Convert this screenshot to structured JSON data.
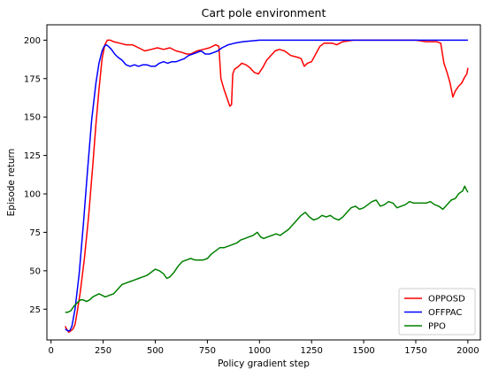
{
  "chart_data": {
    "type": "line",
    "title": "Cart pole environment",
    "xlabel": "Policy gradient step",
    "ylabel": "Episode return",
    "xlim": [
      -20,
      2060
    ],
    "ylim": [
      5,
      210
    ],
    "xticks": [
      0,
      250,
      500,
      750,
      1000,
      1250,
      1500,
      1750,
      2000
    ],
    "yticks": [
      25,
      50,
      75,
      100,
      125,
      150,
      175,
      200
    ],
    "grid": false,
    "legend_position": "bottom-right",
    "series": [
      {
        "name": "OPPOSD",
        "color": "#ff0000",
        "points": [
          [
            68,
            14
          ],
          [
            75,
            12
          ],
          [
            85,
            10
          ],
          [
            95,
            11
          ],
          [
            105,
            12
          ],
          [
            115,
            15
          ],
          [
            125,
            23
          ],
          [
            140,
            36
          ],
          [
            160,
            58
          ],
          [
            180,
            85
          ],
          [
            200,
            118
          ],
          [
            215,
            145
          ],
          [
            230,
            168
          ],
          [
            245,
            188
          ],
          [
            258,
            197
          ],
          [
            270,
            200
          ],
          [
            285,
            200
          ],
          [
            300,
            199
          ],
          [
            330,
            198
          ],
          [
            360,
            197
          ],
          [
            390,
            197
          ],
          [
            420,
            195
          ],
          [
            450,
            193
          ],
          [
            480,
            194
          ],
          [
            510,
            195
          ],
          [
            540,
            194
          ],
          [
            570,
            195
          ],
          [
            600,
            193
          ],
          [
            630,
            192
          ],
          [
            650,
            191
          ],
          [
            670,
            191
          ],
          [
            700,
            193
          ],
          [
            730,
            194
          ],
          [
            760,
            195
          ],
          [
            790,
            197
          ],
          [
            805,
            196
          ],
          [
            815,
            175
          ],
          [
            830,
            168
          ],
          [
            845,
            162
          ],
          [
            858,
            157
          ],
          [
            866,
            158
          ],
          [
            872,
            178
          ],
          [
            880,
            181
          ],
          [
            900,
            183
          ],
          [
            915,
            185
          ],
          [
            935,
            184
          ],
          [
            955,
            182
          ],
          [
            975,
            179
          ],
          [
            995,
            178
          ],
          [
            1015,
            182
          ],
          [
            1035,
            187
          ],
          [
            1055,
            190
          ],
          [
            1075,
            193
          ],
          [
            1095,
            194
          ],
          [
            1120,
            193
          ],
          [
            1150,
            190
          ],
          [
            1180,
            189
          ],
          [
            1200,
            188
          ],
          [
            1215,
            183
          ],
          [
            1230,
            185
          ],
          [
            1250,
            186
          ],
          [
            1270,
            191
          ],
          [
            1290,
            196
          ],
          [
            1310,
            198
          ],
          [
            1350,
            198
          ],
          [
            1370,
            197
          ],
          [
            1400,
            199
          ],
          [
            1450,
            200
          ],
          [
            1500,
            200
          ],
          [
            1550,
            200
          ],
          [
            1600,
            200
          ],
          [
            1650,
            200
          ],
          [
            1700,
            200
          ],
          [
            1750,
            200
          ],
          [
            1800,
            199
          ],
          [
            1850,
            199
          ],
          [
            1870,
            198
          ],
          [
            1885,
            185
          ],
          [
            1900,
            179
          ],
          [
            1915,
            172
          ],
          [
            1928,
            163
          ],
          [
            1940,
            167
          ],
          [
            1955,
            170
          ],
          [
            1970,
            172
          ],
          [
            1985,
            176
          ],
          [
            1995,
            178
          ],
          [
            2000,
            182
          ]
        ]
      },
      {
        "name": "OFFPAC",
        "color": "#0000ff",
        "points": [
          [
            68,
            12
          ],
          [
            80,
            11
          ],
          [
            90,
            11
          ],
          [
            100,
            14
          ],
          [
            115,
            25
          ],
          [
            135,
            48
          ],
          [
            155,
            80
          ],
          [
            175,
            115
          ],
          [
            195,
            148
          ],
          [
            215,
            172
          ],
          [
            230,
            185
          ],
          [
            245,
            193
          ],
          [
            255,
            196
          ],
          [
            265,
            197
          ],
          [
            275,
            196
          ],
          [
            290,
            194
          ],
          [
            305,
            191
          ],
          [
            320,
            189
          ],
          [
            340,
            187
          ],
          [
            360,
            184
          ],
          [
            380,
            183
          ],
          [
            400,
            184
          ],
          [
            420,
            183
          ],
          [
            440,
            184
          ],
          [
            460,
            184
          ],
          [
            480,
            183
          ],
          [
            500,
            183
          ],
          [
            520,
            185
          ],
          [
            540,
            186
          ],
          [
            560,
            185
          ],
          [
            580,
            186
          ],
          [
            600,
            186
          ],
          [
            620,
            187
          ],
          [
            640,
            188
          ],
          [
            660,
            190
          ],
          [
            680,
            191
          ],
          [
            700,
            192
          ],
          [
            720,
            193
          ],
          [
            740,
            191
          ],
          [
            760,
            191
          ],
          [
            780,
            192
          ],
          [
            800,
            193
          ],
          [
            820,
            195
          ],
          [
            850,
            197
          ],
          [
            880,
            198
          ],
          [
            920,
            199
          ],
          [
            960,
            199.5
          ],
          [
            1000,
            200
          ],
          [
            1100,
            200
          ],
          [
            1200,
            200
          ],
          [
            1300,
            200
          ],
          [
            1400,
            200
          ],
          [
            1500,
            200
          ],
          [
            1600,
            200
          ],
          [
            1700,
            200
          ],
          [
            1800,
            200
          ],
          [
            1900,
            200
          ],
          [
            2000,
            200
          ]
        ]
      },
      {
        "name": "PPO",
        "color": "#008000",
        "points": [
          [
            68,
            23
          ],
          [
            80,
            23
          ],
          [
            95,
            24
          ],
          [
            110,
            27
          ],
          [
            125,
            29
          ],
          [
            140,
            31
          ],
          [
            155,
            31
          ],
          [
            170,
            30
          ],
          [
            185,
            31
          ],
          [
            200,
            33
          ],
          [
            215,
            34
          ],
          [
            230,
            35
          ],
          [
            245,
            34
          ],
          [
            260,
            33
          ],
          [
            280,
            34
          ],
          [
            300,
            35
          ],
          [
            320,
            38
          ],
          [
            340,
            41
          ],
          [
            360,
            42
          ],
          [
            380,
            43
          ],
          [
            400,
            44
          ],
          [
            420,
            45
          ],
          [
            440,
            46
          ],
          [
            460,
            47
          ],
          [
            480,
            49
          ],
          [
            500,
            51
          ],
          [
            520,
            50
          ],
          [
            540,
            48
          ],
          [
            555,
            45
          ],
          [
            570,
            46
          ],
          [
            590,
            49
          ],
          [
            610,
            53
          ],
          [
            630,
            56
          ],
          [
            650,
            57
          ],
          [
            670,
            58
          ],
          [
            690,
            57
          ],
          [
            710,
            57
          ],
          [
            730,
            57
          ],
          [
            750,
            58
          ],
          [
            770,
            61
          ],
          [
            790,
            63
          ],
          [
            810,
            65
          ],
          [
            830,
            65
          ],
          [
            850,
            66
          ],
          [
            870,
            67
          ],
          [
            890,
            68
          ],
          [
            910,
            70
          ],
          [
            930,
            71
          ],
          [
            950,
            72
          ],
          [
            970,
            73
          ],
          [
            990,
            75
          ],
          [
            1005,
            72
          ],
          [
            1020,
            71
          ],
          [
            1040,
            72
          ],
          [
            1060,
            73
          ],
          [
            1080,
            74
          ],
          [
            1100,
            73
          ],
          [
            1120,
            75
          ],
          [
            1140,
            77
          ],
          [
            1160,
            80
          ],
          [
            1180,
            83
          ],
          [
            1200,
            86
          ],
          [
            1220,
            88
          ],
          [
            1240,
            85
          ],
          [
            1260,
            83
          ],
          [
            1280,
            84
          ],
          [
            1300,
            86
          ],
          [
            1320,
            85
          ],
          [
            1340,
            86
          ],
          [
            1360,
            84
          ],
          [
            1380,
            83
          ],
          [
            1400,
            85
          ],
          [
            1420,
            88
          ],
          [
            1440,
            91
          ],
          [
            1460,
            92
          ],
          [
            1480,
            90
          ],
          [
            1500,
            91
          ],
          [
            1520,
            93
          ],
          [
            1540,
            95
          ],
          [
            1560,
            96
          ],
          [
            1580,
            92
          ],
          [
            1600,
            93
          ],
          [
            1620,
            95
          ],
          [
            1640,
            94
          ],
          [
            1660,
            91
          ],
          [
            1680,
            92
          ],
          [
            1700,
            93
          ],
          [
            1720,
            95
          ],
          [
            1740,
            94
          ],
          [
            1760,
            94
          ],
          [
            1780,
            94
          ],
          [
            1800,
            94
          ],
          [
            1820,
            95
          ],
          [
            1840,
            93
          ],
          [
            1860,
            92
          ],
          [
            1880,
            90
          ],
          [
            1900,
            93
          ],
          [
            1920,
            96
          ],
          [
            1940,
            97
          ],
          [
            1955,
            100
          ],
          [
            1965,
            101
          ],
          [
            1975,
            102
          ],
          [
            1985,
            105
          ],
          [
            1992,
            103
          ],
          [
            2000,
            101
          ]
        ]
      }
    ]
  }
}
